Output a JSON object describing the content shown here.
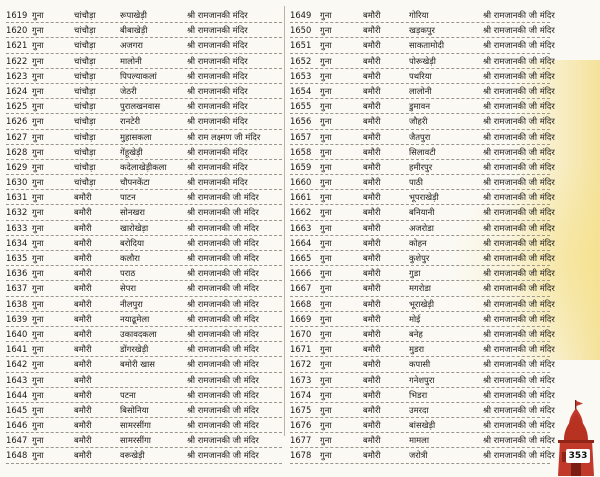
{
  "left_rows": [
    {
      "num": "1619",
      "district": "गुना",
      "block": "चांचौड़ा",
      "village": "रूपाखेड़ी",
      "temple": "श्री रामजानकी मंदिर"
    },
    {
      "num": "1620",
      "district": "गुना",
      "block": "चांचौड़ा",
      "village": "बीबाखेड़ी",
      "temple": "श्री रामजानकी मंदिर"
    },
    {
      "num": "1621",
      "district": "गुना",
      "block": "चांचौड़ा",
      "village": "अजगरा",
      "temple": "श्री रामजानकी मंदिर"
    },
    {
      "num": "1622",
      "district": "गुना",
      "block": "चांचौड़ा",
      "village": "मालोनी",
      "temple": "श्री रामजानकी मंदिर"
    },
    {
      "num": "1623",
      "district": "गुना",
      "block": "चांचौड़ा",
      "village": "पिपल्याकलां",
      "temple": "श्री रामजानकी मंदिर"
    },
    {
      "num": "1624",
      "district": "गुना",
      "block": "चांचौड़ा",
      "village": "जेठरी",
      "temple": "श्री रामजानकी मंदिर"
    },
    {
      "num": "1625",
      "district": "गुना",
      "block": "चांचौड़ा",
      "village": "पुरालखनवास",
      "temple": "श्री रामजानकी मंदिर"
    },
    {
      "num": "1626",
      "district": "गुना",
      "block": "चांचौड़ा",
      "village": "रानटेरी",
      "temple": "श्री रामजानकी मंदिर"
    },
    {
      "num": "1627",
      "district": "गुना",
      "block": "चांचौड़ा",
      "village": "मुहासकला",
      "temple": "श्री राम लक्ष्मण जी मंदिर"
    },
    {
      "num": "1628",
      "district": "गुना",
      "block": "चांचौड़ा",
      "village": "गेंहूखेड़ी",
      "temple": "श्री रामजानकी मंदिर"
    },
    {
      "num": "1629",
      "district": "गुना",
      "block": "चांचौड़ा",
      "village": "कदेलाखेड़ीकला",
      "temple": "श्री रामजानकी मंदिर"
    },
    {
      "num": "1630",
      "district": "गुना",
      "block": "चांचौड़ा",
      "village": "चौपनकेंटा",
      "temple": "श्री रामजानकी मंदिर"
    },
    {
      "num": "1631",
      "district": "गुना",
      "block": "बमौरी",
      "village": "पाटन",
      "temple": "श्री रामजानकी जी मंदिर"
    },
    {
      "num": "1632",
      "district": "गुना",
      "block": "बमौरी",
      "village": "सोनखरा",
      "temple": "श्री रामजानकी जी मंदिर"
    },
    {
      "num": "1633",
      "district": "गुना",
      "block": "बमौरी",
      "village": "खारोखेड़ा",
      "temple": "श्री रामजानकी जी मंदिर"
    },
    {
      "num": "1634",
      "district": "गुना",
      "block": "बमौरी",
      "village": "बरोदिया",
      "temple": "श्री रामजानकी जी मंदिर"
    },
    {
      "num": "1635",
      "district": "गुना",
      "block": "बमौरी",
      "village": "कलौरा",
      "temple": "श्री रामजानकी जी मंदिर"
    },
    {
      "num": "1636",
      "district": "गुना",
      "block": "बमौरी",
      "village": "पराठ",
      "temple": "श्री रामजानकी जी मंदिर"
    },
    {
      "num": "1637",
      "district": "गुना",
      "block": "बमौरी",
      "village": "सेपरा",
      "temple": "श्री रामजानकी जी मंदिर"
    },
    {
      "num": "1638",
      "district": "गुना",
      "block": "बमौरी",
      "village": "नीलपुरा",
      "temple": "श्री रामजानकी जी मंदिर"
    },
    {
      "num": "1639",
      "district": "गुना",
      "block": "बमौरी",
      "village": "नयाढूमेला",
      "temple": "श्री रामजानकी जी मंदिर"
    },
    {
      "num": "1640",
      "district": "गुना",
      "block": "बमौरी",
      "village": "उकावदकला",
      "temple": "श्री रामजानकी जी मंदिर"
    },
    {
      "num": "1641",
      "district": "गुना",
      "block": "बमौरी",
      "village": "डोंगरखेड़ी",
      "temple": "श्री रामजानकी जी मंदिर"
    },
    {
      "num": "1642",
      "district": "गुना",
      "block": "बमौरी",
      "village": "बमोरी खास",
      "temple": "श्री रामजानकी जी मंदिर"
    },
    {
      "num": "1643",
      "district": "गुना",
      "block": "बमौरी",
      "village": "",
      "temple": "श्री रामजानकी जी मंदिर"
    },
    {
      "num": "1644",
      "district": "गुना",
      "block": "बमौरी",
      "village": "पटना",
      "temple": "श्री रामजानकी जी मंदिर"
    },
    {
      "num": "1645",
      "district": "गुना",
      "block": "बमौरी",
      "village": "बिसोनिया",
      "temple": "श्री रामजानकी जी मंदिर"
    },
    {
      "num": "1646",
      "district": "गुना",
      "block": "बमौरी",
      "village": "सामरसींगा",
      "temple": "श्री रामजानकी जी मंदिर"
    },
    {
      "num": "1647",
      "district": "गुना",
      "block": "बमौरी",
      "village": "सामरसींगा",
      "temple": "श्री रामजानकी जी मंदिर"
    },
    {
      "num": "1648",
      "district": "गुना",
      "block": "बमौरी",
      "village": "वरूखेड़ी",
      "temple": "श्री रामजानकी जी मंदिर"
    }
  ],
  "right_rows": [
    {
      "num": "1649",
      "district": "गुना",
      "block": "बमौरी",
      "village": "गोरिया",
      "temple": "श्री रामजानकी जी मंदिर"
    },
    {
      "num": "1650",
      "district": "गुना",
      "block": "बमौरी",
      "village": "खड़कपुर",
      "temple": "श्री रामजानकी जी मंदिर"
    },
    {
      "num": "1651",
      "district": "गुना",
      "block": "बमौरी",
      "village": "साकतामोदी",
      "temple": "श्री रामजानकी जी मंदिर"
    },
    {
      "num": "1652",
      "district": "गुना",
      "block": "बमौरी",
      "village": "पोरूखेड़ी",
      "temple": "श्री रामजानकी जी मंदिर"
    },
    {
      "num": "1653",
      "district": "गुना",
      "block": "बमौरी",
      "village": "पथरिया",
      "temple": "श्री रामजानकी जी मंदिर"
    },
    {
      "num": "1654",
      "district": "गुना",
      "block": "बमौरी",
      "village": "लालोनी",
      "temple": "श्री रामजानकी जी मंदिर"
    },
    {
      "num": "1655",
      "district": "गुना",
      "block": "बमौरी",
      "village": "डुमावन",
      "temple": "श्री रामजानकी जी मंदिर"
    },
    {
      "num": "1656",
      "district": "गुना",
      "block": "बमौरी",
      "village": "जौहरी",
      "temple": "श्री रामजानकी जी मंदिर"
    },
    {
      "num": "1657",
      "district": "गुना",
      "block": "बमौरी",
      "village": "जैतपुरा",
      "temple": "श्री रामजानकी जी मंदिर"
    },
    {
      "num": "1658",
      "district": "गुना",
      "block": "बमौरी",
      "village": "सिलावटी",
      "temple": "श्री रामजानकी जी मंदिर"
    },
    {
      "num": "1659",
      "district": "गुना",
      "block": "बमौरी",
      "village": "हमीरपुर",
      "temple": "श्री रामजानकी जी मंदिर"
    },
    {
      "num": "1660",
      "district": "गुना",
      "block": "बमौरी",
      "village": "पाठी",
      "temple": "श्री रामजानकी जी मंदिर"
    },
    {
      "num": "1661",
      "district": "गुना",
      "block": "बमौरी",
      "village": "भूपराखेड़ी",
      "temple": "श्री रामजानकी जी मंदिर"
    },
    {
      "num": "1662",
      "district": "गुना",
      "block": "बमौरी",
      "village": "बनियानी",
      "temple": "श्री रामजानकी जी मंदिर"
    },
    {
      "num": "1663",
      "district": "गुना",
      "block": "बमौरी",
      "village": "अजरोडा",
      "temple": "श्री रामजानकी जी मंदिर"
    },
    {
      "num": "1664",
      "district": "गुना",
      "block": "बमौरी",
      "village": "कोहन",
      "temple": "श्री रामजानकी जी मंदिर"
    },
    {
      "num": "1665",
      "district": "गुना",
      "block": "बमौरी",
      "village": "कुशेपुर",
      "temple": "श्री रामजानकी जी मंदिर"
    },
    {
      "num": "1666",
      "district": "गुना",
      "block": "बमौरी",
      "village": "गुडा",
      "temple": "श्री रामजानकी जी मंदिर"
    },
    {
      "num": "1667",
      "district": "गुना",
      "block": "बमौरी",
      "village": "मगरोडा",
      "temple": "श्री रामजानकी जी मंदिर"
    },
    {
      "num": "1668",
      "district": "गुना",
      "block": "बमौरी",
      "village": "भूराखेड़ी",
      "temple": "श्री रामजानकी जी मंदिर"
    },
    {
      "num": "1669",
      "district": "गुना",
      "block": "बमौरी",
      "village": "मोई",
      "temple": "श्री रामजानकी जी मंदिर"
    },
    {
      "num": "1670",
      "district": "गुना",
      "block": "बमौरी",
      "village": "बनेह",
      "temple": "श्री रामजानकी जी मंदिर"
    },
    {
      "num": "1671",
      "district": "गुना",
      "block": "बमौरी",
      "village": "मुडरा",
      "temple": "श्री रामजानकी जी मंदिर"
    },
    {
      "num": "1672",
      "district": "गुना",
      "block": "बमौरी",
      "village": "कपासी",
      "temple": "श्री रामजानकी जी मंदिर"
    },
    {
      "num": "1673",
      "district": "गुना",
      "block": "बमौरी",
      "village": "गनेशपुरा",
      "temple": "श्री रामजानकी जी मंदिर"
    },
    {
      "num": "1674",
      "district": "गुना",
      "block": "बमौरी",
      "village": "भिडरा",
      "temple": "श्री रामजानकी जी मंदिर"
    },
    {
      "num": "1675",
      "district": "गुना",
      "block": "बमौरी",
      "village": "उमरदा",
      "temple": "श्री रामजानकी जी मंदिर"
    },
    {
      "num": "1676",
      "district": "गुना",
      "block": "बमौरी",
      "village": "बांसखेड़ी",
      "temple": "श्री रामजानकी जी मंदिर"
    },
    {
      "num": "1677",
      "district": "गुना",
      "block": "बमौरी",
      "village": "मामला",
      "temple": "श्री रामजानकी जी मंदिर"
    },
    {
      "num": "1678",
      "district": "गुना",
      "block": "बमौरी",
      "village": "जरोत्री",
      "temple": "श्री रामजानकी जी मंदिर"
    }
  ],
  "page_number": "353",
  "colors": {
    "accent": "#c0392b",
    "wash": "#f4e29a"
  },
  "icons": {
    "page_badge": "temple-icon"
  }
}
